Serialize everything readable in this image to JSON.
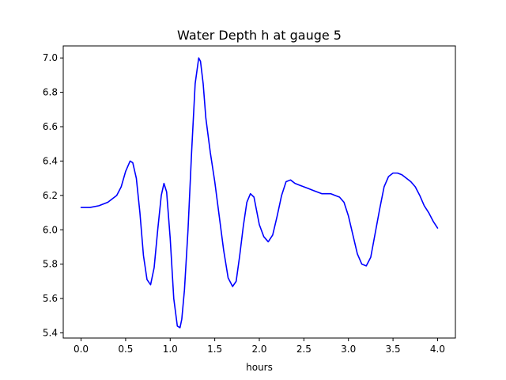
{
  "chart_data": {
    "type": "line",
    "title": "Water Depth h at gauge 5",
    "xlabel": "hours",
    "ylabel": "",
    "xlim": [
      -0.2,
      4.2
    ],
    "ylim": [
      5.37,
      7.07
    ],
    "grid": false,
    "x_ticks": [
      0.0,
      0.5,
      1.0,
      1.5,
      2.0,
      2.5,
      3.0,
      3.5,
      4.0
    ],
    "x_tick_labels": [
      "0.0",
      "0.5",
      "1.0",
      "1.5",
      "2.0",
      "2.5",
      "3.0",
      "3.5",
      "4.0"
    ],
    "y_ticks": [
      5.4,
      5.6,
      5.8,
      6.0,
      6.2,
      6.4,
      6.6,
      6.8,
      7.0
    ],
    "y_tick_labels": [
      "5.4",
      "5.6",
      "5.8",
      "6.0",
      "6.2",
      "6.4",
      "6.6",
      "6.8",
      "7.0"
    ],
    "series": [
      {
        "color": "#0000ff",
        "x": [
          0.0,
          0.1,
          0.2,
          0.3,
          0.4,
          0.45,
          0.5,
          0.55,
          0.58,
          0.62,
          0.66,
          0.7,
          0.74,
          0.78,
          0.82,
          0.86,
          0.9,
          0.93,
          0.96,
          1.0,
          1.04,
          1.08,
          1.11,
          1.13,
          1.16,
          1.2,
          1.24,
          1.28,
          1.32,
          1.34,
          1.37,
          1.4,
          1.45,
          1.5,
          1.55,
          1.6,
          1.65,
          1.7,
          1.74,
          1.78,
          1.82,
          1.86,
          1.9,
          1.94,
          1.97,
          2.0,
          2.05,
          2.1,
          2.15,
          2.2,
          2.25,
          2.3,
          2.35,
          2.4,
          2.45,
          2.5,
          2.55,
          2.6,
          2.65,
          2.7,
          2.75,
          2.8,
          2.85,
          2.9,
          2.95,
          3.0,
          3.05,
          3.1,
          3.15,
          3.2,
          3.25,
          3.3,
          3.35,
          3.4,
          3.45,
          3.5,
          3.55,
          3.6,
          3.65,
          3.7,
          3.75,
          3.8,
          3.85,
          3.9,
          3.95,
          4.0
        ],
        "y": [
          6.13,
          6.13,
          6.14,
          6.16,
          6.2,
          6.25,
          6.34,
          6.4,
          6.39,
          6.3,
          6.1,
          5.85,
          5.71,
          5.68,
          5.78,
          6.0,
          6.2,
          6.27,
          6.22,
          5.95,
          5.6,
          5.44,
          5.43,
          5.48,
          5.65,
          6.0,
          6.45,
          6.85,
          7.0,
          6.98,
          6.85,
          6.65,
          6.45,
          6.28,
          6.08,
          5.88,
          5.72,
          5.67,
          5.7,
          5.85,
          6.02,
          6.16,
          6.21,
          6.19,
          6.11,
          6.03,
          5.96,
          5.93,
          5.97,
          6.08,
          6.2,
          6.28,
          6.29,
          6.27,
          6.26,
          6.25,
          6.24,
          6.23,
          6.22,
          6.21,
          6.21,
          6.21,
          6.2,
          6.19,
          6.16,
          6.08,
          5.97,
          5.86,
          5.8,
          5.79,
          5.84,
          5.98,
          6.12,
          6.25,
          6.31,
          6.33,
          6.33,
          6.32,
          6.3,
          6.28,
          6.25,
          6.2,
          6.14,
          6.1,
          6.05,
          6.01
        ]
      }
    ]
  }
}
